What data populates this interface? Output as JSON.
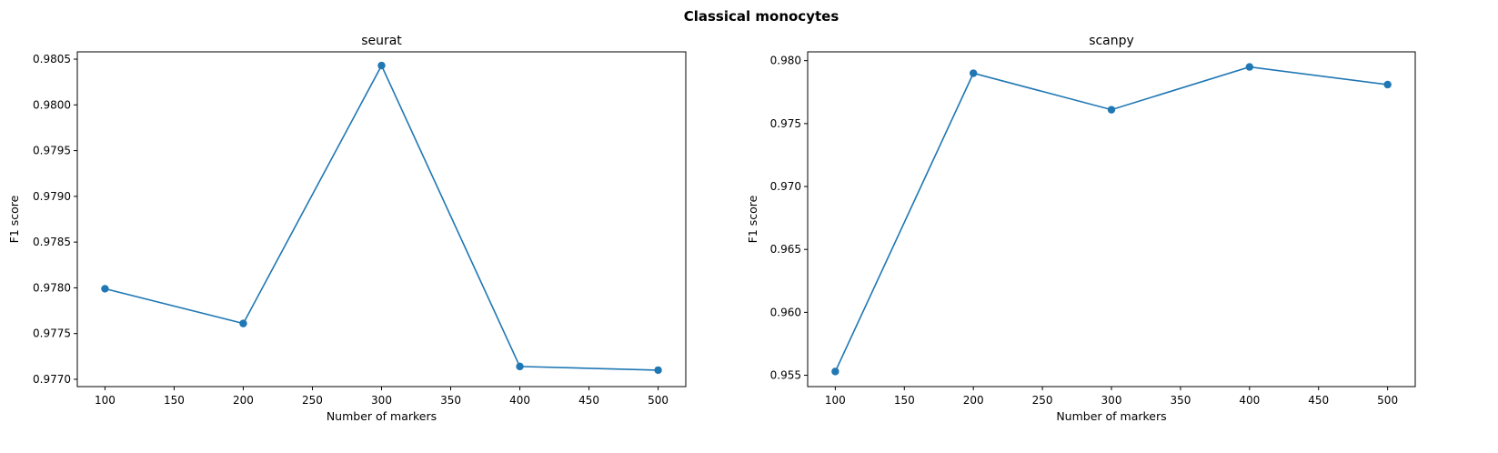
{
  "figure": {
    "title": "Classical monocytes"
  },
  "chart_data": [
    {
      "type": "line",
      "title": "seurat",
      "xlabel": "Number of markers",
      "ylabel": "F1 score",
      "x": [
        100,
        200,
        300,
        400,
        500
      ],
      "series": [
        {
          "values": [
            0.97799,
            0.97761,
            0.98043,
            0.97714,
            0.9771
          ],
          "color": "#1f77b4",
          "marker": "circle"
        }
      ],
      "xlim": [
        80,
        520
      ],
      "ylim": [
        0.97692,
        0.98058
      ],
      "xticks": [
        100,
        150,
        200,
        250,
        300,
        350,
        400,
        450,
        500
      ],
      "xtick_labels": [
        "100",
        "150",
        "200",
        "250",
        "300",
        "350",
        "400",
        "450",
        "500"
      ],
      "yticks": [
        0.977,
        0.9775,
        0.978,
        0.9785,
        0.979,
        0.9795,
        0.98,
        0.9805
      ],
      "ytick_labels": [
        "0.9770",
        "0.9775",
        "0.9780",
        "0.9785",
        "0.9790",
        "0.9795",
        "0.9800",
        "0.9805"
      ],
      "grid": false,
      "legend": "none"
    },
    {
      "type": "line",
      "title": "scanpy",
      "xlabel": "Number of markers",
      "ylabel": "F1 score",
      "x": [
        100,
        200,
        300,
        400,
        500
      ],
      "series": [
        {
          "values": [
            0.9553,
            0.979,
            0.9761,
            0.9795,
            0.9781
          ],
          "color": "#1f77b4",
          "marker": "circle"
        }
      ],
      "xlim": [
        80,
        520
      ],
      "ylim": [
        0.9541,
        0.9807
      ],
      "xticks": [
        100,
        150,
        200,
        250,
        300,
        350,
        400,
        450,
        500
      ],
      "xtick_labels": [
        "100",
        "150",
        "200",
        "250",
        "300",
        "350",
        "400",
        "450",
        "500"
      ],
      "yticks": [
        0.955,
        0.96,
        0.965,
        0.97,
        0.975,
        0.98
      ],
      "ytick_labels": [
        "0.955",
        "0.960",
        "0.965",
        "0.970",
        "0.975",
        "0.980"
      ],
      "grid": false,
      "legend": "none"
    }
  ]
}
